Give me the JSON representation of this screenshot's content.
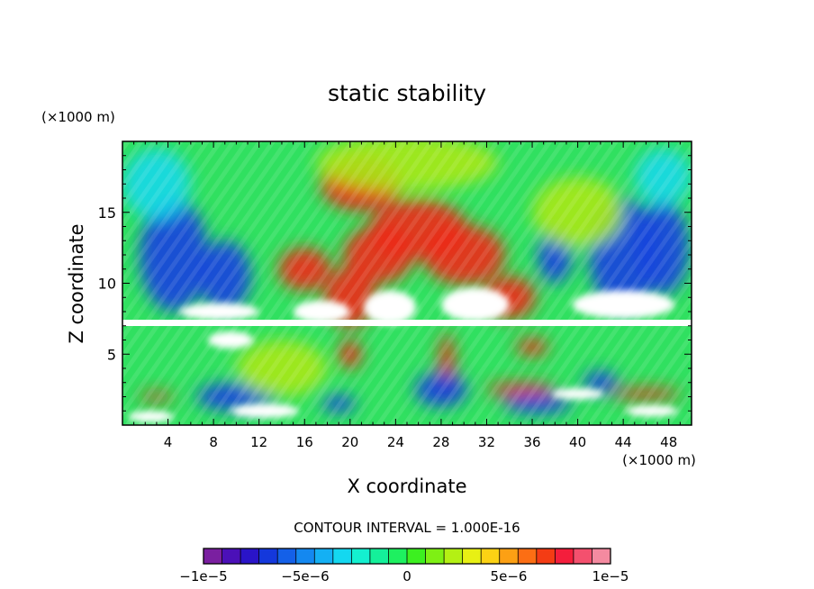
{
  "chart_data": {
    "type": "heatmap",
    "title": "static stability",
    "xlabel": "X coordinate",
    "ylabel": "Z coordinate",
    "x_unit": "(×1000 m)",
    "y_unit": "(×1000 m)",
    "xlim": [
      0,
      50
    ],
    "ylim": [
      0,
      20
    ],
    "x_ticks": [
      4,
      8,
      12,
      16,
      20,
      24,
      28,
      32,
      36,
      40,
      44,
      48
    ],
    "y_ticks": [
      5,
      10,
      15
    ],
    "contour_interval_label": "CONTOUR INTERVAL = 1.000E-16",
    "colorbar": {
      "range": [
        -1e-05,
        1e-05
      ],
      "tick_values": [
        -1e-05,
        -5e-06,
        0,
        5e-06,
        1e-05
      ],
      "tick_labels": [
        "−1e−5",
        "−5e−6",
        "0",
        "5e−6",
        "1e−5"
      ],
      "colors": [
        "#7a1fa0",
        "#4b10b8",
        "#2a14c8",
        "#1438dc",
        "#1460e8",
        "#1488f0",
        "#14b0f4",
        "#14d8f0",
        "#14f0d0",
        "#14f09a",
        "#1ef060",
        "#3cf020",
        "#7ef014",
        "#b4f014",
        "#e8f014",
        "#fcd214",
        "#fca014",
        "#fc6e14",
        "#f43c14",
        "#f41e3c",
        "#f4506e",
        "#f48aa0"
      ]
    },
    "field_features": [
      {
        "kind": "red",
        "x": 20.0,
        "y": 9.0,
        "r": [
          2.3,
          2.1
        ]
      },
      {
        "kind": "red",
        "x": 22.5,
        "y": 12.0,
        "r": [
          3.1,
          2.0
        ]
      },
      {
        "kind": "red",
        "x": 26.0,
        "y": 13.8,
        "r": [
          4.3,
          2.1
        ]
      },
      {
        "kind": "red",
        "x": 30.0,
        "y": 12.0,
        "r": [
          3.6,
          2.1
        ]
      },
      {
        "kind": "red",
        "x": 34.0,
        "y": 9.0,
        "r": [
          2.3,
          1.5
        ]
      },
      {
        "kind": "red",
        "x": 16.0,
        "y": 11.0,
        "r": [
          2.3,
          1.5
        ]
      },
      {
        "kind": "red",
        "x": 21.0,
        "y": 17.0,
        "r": [
          3.6,
          1.9
        ]
      },
      {
        "kind": "red",
        "x": 36.0,
        "y": 5.5,
        "r": [
          1.4,
          0.6
        ]
      },
      {
        "kind": "red",
        "x": 3.0,
        "y": 2.0,
        "r": [
          1.5,
          0.3
        ]
      },
      {
        "kind": "red",
        "x": 35.0,
        "y": 2.5,
        "r": [
          3.0,
          0.5
        ]
      },
      {
        "kind": "red",
        "x": 20.0,
        "y": 5.0,
        "r": [
          1.0,
          1.0
        ]
      },
      {
        "kind": "red",
        "x": 46.0,
        "y": 2.2,
        "r": [
          3.0,
          0.4
        ]
      },
      {
        "kind": "red",
        "x": 28.5,
        "y": 4.0,
        "r": [
          0.7,
          2.5
        ]
      },
      {
        "kind": "blue",
        "x": 4.5,
        "y": 12.0,
        "r": [
          3.0,
          4.0
        ]
      },
      {
        "kind": "blue",
        "x": 9.0,
        "y": 10.5,
        "r": [
          2.3,
          2.5
        ]
      },
      {
        "kind": "blue",
        "x": 44.0,
        "y": 12.0,
        "r": [
          3.0,
          4.0
        ]
      },
      {
        "kind": "blue",
        "x": 47.5,
        "y": 12.5,
        "r": [
          2.3,
          3.3
        ]
      },
      {
        "kind": "blue",
        "x": 38.0,
        "y": 12.0,
        "r": [
          1.5,
          2.0
        ]
      },
      {
        "kind": "blue",
        "x": 10.0,
        "y": 2.0,
        "r": [
          3.5,
          1.0
        ]
      },
      {
        "kind": "blue",
        "x": 28.0,
        "y": 2.5,
        "r": [
          2.3,
          1.2
        ]
      },
      {
        "kind": "blue",
        "x": 36.5,
        "y": 1.5,
        "r": [
          3.0,
          0.7
        ]
      },
      {
        "kind": "blue",
        "x": 19.0,
        "y": 1.5,
        "r": [
          1.5,
          0.6
        ]
      },
      {
        "kind": "blue",
        "x": 42.0,
        "y": 3.0,
        "r": [
          1.5,
          0.8
        ]
      },
      {
        "kind": "green",
        "x": 25.0,
        "y": 18.5,
        "r": [
          8.0,
          2.0
        ]
      },
      {
        "kind": "green",
        "x": 14.0,
        "y": 4.0,
        "r": [
          4.0,
          2.0
        ]
      },
      {
        "kind": "green",
        "x": 40.0,
        "y": 15.0,
        "r": [
          4.0,
          2.5
        ]
      },
      {
        "kind": "cyan",
        "x": 3.0,
        "y": 17.0,
        "r": [
          3.0,
          2.5
        ]
      },
      {
        "kind": "cyan",
        "x": 47.5,
        "y": 17.5,
        "r": [
          2.5,
          2.0
        ]
      },
      {
        "kind": "white",
        "x": 17.5,
        "y": 8.0,
        "r": [
          2.5,
          0.8
        ]
      },
      {
        "kind": "white",
        "x": 23.5,
        "y": 8.3,
        "r": [
          2.3,
          1.2
        ]
      },
      {
        "kind": "white",
        "x": 31.0,
        "y": 8.5,
        "r": [
          3.0,
          1.2
        ]
      },
      {
        "kind": "white",
        "x": 44.0,
        "y": 8.5,
        "r": [
          4.5,
          1.0
        ]
      },
      {
        "kind": "white",
        "x": 8.5,
        "y": 8.0,
        "r": [
          3.5,
          0.6
        ]
      },
      {
        "kind": "white",
        "x": 2.5,
        "y": 0.6,
        "r": [
          2.0,
          0.4
        ]
      },
      {
        "kind": "white",
        "x": 12.5,
        "y": 1.0,
        "r": [
          3.0,
          0.5
        ]
      },
      {
        "kind": "white",
        "x": 40.0,
        "y": 2.2,
        "r": [
          2.3,
          0.4
        ]
      },
      {
        "kind": "white",
        "x": 46.5,
        "y": 1.0,
        "r": [
          2.3,
          0.4
        ]
      },
      {
        "kind": "white",
        "x": 9.5,
        "y": 6.0,
        "r": [
          2.0,
          0.6
        ]
      }
    ]
  }
}
